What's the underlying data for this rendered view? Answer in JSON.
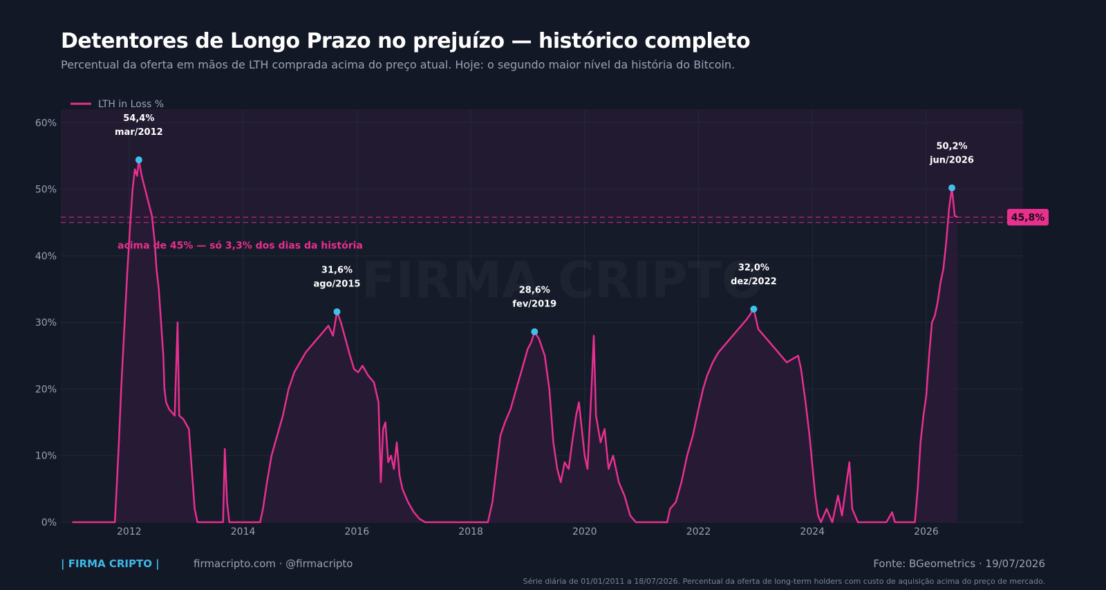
{
  "header": {
    "title": "Detentores de Longo Prazo no prejuízo — histórico completo",
    "subtitle": "Percentual da oferta em mãos de LTH comprada acima do preço atual. Hoje: o segundo maior nível da história do Bitcoin."
  },
  "footer": {
    "brand": "| FIRMA CRIPTO |",
    "site": "firmacripto.com  ·  @firmacripto",
    "source": "Fonte: BGeometrics  ·  19/07/2026",
    "note": "Série diária de 01/01/2011 a 18/07/2026. Percentual da oferta de long-term holders com custo de aquisição acima do preço de mercado."
  },
  "colors": {
    "line": "#e8308f",
    "fill": "#2a1a36",
    "peak_marker": "#3fc1ea",
    "threshold_zone": "#221a30",
    "grid": "#222a3a",
    "current_badge": "#e8308f"
  },
  "chart_data": {
    "type": "area",
    "legend": {
      "label": "LTH in Loss %",
      "position": "top-left"
    },
    "watermark": "FIRMA CRIPTO",
    "x_range": [
      2010.8,
      2027.7
    ],
    "xticks": [
      2012,
      2014,
      2016,
      2018,
      2020,
      2022,
      2024,
      2026
    ],
    "xtick_labels": [
      "2012",
      "2014",
      "2016",
      "2018",
      "2020",
      "2022",
      "2024",
      "2026"
    ],
    "ylim": [
      0,
      62
    ],
    "yticks": [
      0,
      10,
      20,
      30,
      40,
      50,
      60
    ],
    "ytick_labels": [
      "0%",
      "10%",
      "20%",
      "30%",
      "40%",
      "50%",
      "60%"
    ],
    "threshold": {
      "value": 45,
      "label": "acima de 45% — só 3,3% dos dias da história"
    },
    "current": {
      "value": 45.8,
      "label": "45,8%"
    },
    "peaks": [
      {
        "x": 2012.17,
        "y": 54.4,
        "value_label": "54,4%",
        "date_label": "mar/2012"
      },
      {
        "x": 2015.65,
        "y": 31.6,
        "value_label": "31,6%",
        "date_label": "ago/2015"
      },
      {
        "x": 2019.12,
        "y": 28.6,
        "value_label": "28,6%",
        "date_label": "fev/2019"
      },
      {
        "x": 2022.97,
        "y": 32.0,
        "value_label": "32,0%",
        "date_label": "dez/2022"
      },
      {
        "x": 2026.45,
        "y": 50.2,
        "value_label": "50,2%",
        "date_label": "jun/2026"
      }
    ],
    "series": [
      {
        "name": "LTH in Loss %",
        "points": [
          [
            2011.0,
            0
          ],
          [
            2011.75,
            0
          ],
          [
            2011.78,
            5
          ],
          [
            2011.82,
            12
          ],
          [
            2011.86,
            20
          ],
          [
            2011.92,
            30
          ],
          [
            2011.97,
            38
          ],
          [
            2012.02,
            45
          ],
          [
            2012.06,
            50
          ],
          [
            2012.1,
            53
          ],
          [
            2012.14,
            52
          ],
          [
            2012.17,
            54.4
          ],
          [
            2012.22,
            52
          ],
          [
            2012.28,
            50
          ],
          [
            2012.34,
            48
          ],
          [
            2012.4,
            46
          ],
          [
            2012.45,
            42
          ],
          [
            2012.48,
            38
          ],
          [
            2012.52,
            35
          ],
          [
            2012.56,
            30
          ],
          [
            2012.6,
            25
          ],
          [
            2012.62,
            20
          ],
          [
            2012.65,
            18
          ],
          [
            2012.7,
            17
          ],
          [
            2012.75,
            16.5
          ],
          [
            2012.8,
            16
          ],
          [
            2012.85,
            30
          ],
          [
            2012.88,
            16
          ],
          [
            2012.95,
            15.5
          ],
          [
            2013.05,
            14
          ],
          [
            2013.1,
            8
          ],
          [
            2013.15,
            2
          ],
          [
            2013.2,
            0
          ],
          [
            2013.65,
            0
          ],
          [
            2013.68,
            11
          ],
          [
            2013.72,
            3
          ],
          [
            2013.76,
            0
          ],
          [
            2014.3,
            0
          ],
          [
            2014.35,
            2
          ],
          [
            2014.42,
            6
          ],
          [
            2014.5,
            10
          ],
          [
            2014.6,
            13
          ],
          [
            2014.7,
            16
          ],
          [
            2014.8,
            20
          ],
          [
            2014.9,
            22.5
          ],
          [
            2015.0,
            24
          ],
          [
            2015.1,
            25.5
          ],
          [
            2015.2,
            26.5
          ],
          [
            2015.3,
            27.5
          ],
          [
            2015.4,
            28.5
          ],
          [
            2015.5,
            29.5
          ],
          [
            2015.58,
            28
          ],
          [
            2015.65,
            31.6
          ],
          [
            2015.72,
            30
          ],
          [
            2015.8,
            27.5
          ],
          [
            2015.88,
            25
          ],
          [
            2015.95,
            23
          ],
          [
            2016.02,
            22.5
          ],
          [
            2016.1,
            23.5
          ],
          [
            2016.2,
            22
          ],
          [
            2016.3,
            21
          ],
          [
            2016.38,
            18
          ],
          [
            2016.42,
            6
          ],
          [
            2016.46,
            14
          ],
          [
            2016.5,
            15
          ],
          [
            2016.55,
            9
          ],
          [
            2016.6,
            10
          ],
          [
            2016.65,
            8
          ],
          [
            2016.7,
            12
          ],
          [
            2016.75,
            7
          ],
          [
            2016.8,
            5
          ],
          [
            2016.9,
            3
          ],
          [
            2017.0,
            1.5
          ],
          [
            2017.1,
            0.5
          ],
          [
            2017.2,
            0
          ],
          [
            2018.3,
            0
          ],
          [
            2018.38,
            3
          ],
          [
            2018.45,
            8
          ],
          [
            2018.52,
            13
          ],
          [
            2018.6,
            15
          ],
          [
            2018.7,
            17
          ],
          [
            2018.8,
            20
          ],
          [
            2018.9,
            23
          ],
          [
            2019.0,
            26
          ],
          [
            2019.06,
            27
          ],
          [
            2019.12,
            28.6
          ],
          [
            2019.2,
            27.5
          ],
          [
            2019.3,
            25
          ],
          [
            2019.38,
            20
          ],
          [
            2019.45,
            12
          ],
          [
            2019.52,
            8
          ],
          [
            2019.58,
            6
          ],
          [
            2019.65,
            9
          ],
          [
            2019.72,
            8
          ],
          [
            2019.78,
            12
          ],
          [
            2019.85,
            16
          ],
          [
            2019.9,
            18
          ],
          [
            2019.95,
            14
          ],
          [
            2020.0,
            10
          ],
          [
            2020.05,
            8
          ],
          [
            2020.12,
            20
          ],
          [
            2020.16,
            28
          ],
          [
            2020.2,
            16
          ],
          [
            2020.28,
            12
          ],
          [
            2020.35,
            14
          ],
          [
            2020.42,
            8
          ],
          [
            2020.5,
            10
          ],
          [
            2020.6,
            6
          ],
          [
            2020.7,
            4
          ],
          [
            2020.8,
            1
          ],
          [
            2020.9,
            0
          ],
          [
            2021.45,
            0
          ],
          [
            2021.5,
            2
          ],
          [
            2021.6,
            3
          ],
          [
            2021.7,
            6
          ],
          [
            2021.8,
            10
          ],
          [
            2021.9,
            13
          ],
          [
            2022.0,
            17
          ],
          [
            2022.08,
            20
          ],
          [
            2022.15,
            22
          ],
          [
            2022.25,
            24
          ],
          [
            2022.35,
            25.5
          ],
          [
            2022.45,
            26.5
          ],
          [
            2022.55,
            27.5
          ],
          [
            2022.65,
            28.5
          ],
          [
            2022.75,
            29.5
          ],
          [
            2022.85,
            30.5
          ],
          [
            2022.97,
            32
          ],
          [
            2023.05,
            29
          ],
          [
            2023.15,
            28
          ],
          [
            2023.25,
            27
          ],
          [
            2023.35,
            26
          ],
          [
            2023.45,
            25
          ],
          [
            2023.55,
            24
          ],
          [
            2023.65,
            24.5
          ],
          [
            2023.75,
            25
          ],
          [
            2023.8,
            23
          ],
          [
            2023.88,
            18
          ],
          [
            2023.95,
            13
          ],
          [
            2024.05,
            4
          ],
          [
            2024.1,
            1
          ],
          [
            2024.15,
            0
          ],
          [
            2024.25,
            2
          ],
          [
            2024.35,
            0
          ],
          [
            2024.45,
            4
          ],
          [
            2024.52,
            1
          ],
          [
            2024.6,
            6
          ],
          [
            2024.65,
            9
          ],
          [
            2024.7,
            2
          ],
          [
            2024.8,
            0
          ],
          [
            2025.3,
            0
          ],
          [
            2025.4,
            1.5
          ],
          [
            2025.45,
            0
          ],
          [
            2025.8,
            0
          ],
          [
            2025.85,
            5
          ],
          [
            2025.9,
            12
          ],
          [
            2025.95,
            16
          ],
          [
            2026.0,
            19
          ],
          [
            2026.05,
            25
          ],
          [
            2026.1,
            30
          ],
          [
            2026.15,
            31
          ],
          [
            2026.2,
            33
          ],
          [
            2026.25,
            36
          ],
          [
            2026.3,
            38
          ],
          [
            2026.35,
            42
          ],
          [
            2026.4,
            47
          ],
          [
            2026.45,
            50.2
          ],
          [
            2026.5,
            46
          ],
          [
            2026.55,
            45.8
          ]
        ]
      }
    ]
  }
}
